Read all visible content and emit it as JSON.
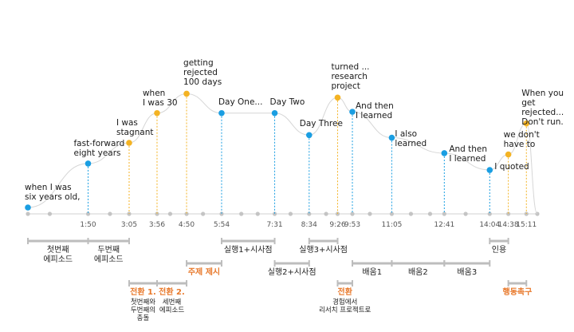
{
  "colors": {
    "blue": "#1a9ee2",
    "orange": "#f4b323",
    "orange_text": "#e8782a",
    "segment_gray": "#bdbdbd",
    "axis_gray": "#d9d9d9",
    "curve_gray": "#d6d6d6"
  },
  "points": [
    {
      "label": "when I was\nsix years old,",
      "t": 0,
      "level": 0.0,
      "color": "blue"
    },
    {
      "label": "fast-forward\neight years",
      "t": 110,
      "level": 0.34,
      "color": "blue"
    },
    {
      "label": "I was\nstagnant",
      "t": 185,
      "level": 0.5,
      "color": "orange"
    },
    {
      "label": "when\nI was 30",
      "t": 236,
      "level": 0.73,
      "color": "orange"
    },
    {
      "label": "getting\nrejected\n100 days",
      "t": 290,
      "level": 0.88,
      "color": "orange"
    },
    {
      "label": "Day One...",
      "t": 354,
      "level": 0.73,
      "color": "blue"
    },
    {
      "label": "Day Two",
      "t": 451,
      "level": 0.73,
      "color": "blue"
    },
    {
      "label": "Day Three",
      "t": 514,
      "level": 0.56,
      "color": "blue"
    },
    {
      "label": "turned ...\nresearch\nproject",
      "t": 566,
      "level": 0.85,
      "color": "orange"
    },
    {
      "label": "And then\nI learned",
      "t": 593,
      "level": 0.74,
      "color": "blue"
    },
    {
      "label": "I also\nlearned",
      "t": 665,
      "level": 0.54,
      "color": "blue"
    },
    {
      "label": "And then\nI learned",
      "t": 761,
      "level": 0.42,
      "color": "blue"
    },
    {
      "label": "I quoted",
      "t": 844,
      "level": 0.29,
      "color": "blue"
    },
    {
      "label": "we don't\nhave to",
      "t": 878,
      "level": 0.41,
      "color": "orange"
    },
    {
      "label": "When you\nget rejected...\nDon't run.",
      "t": 911,
      "level": 0.65,
      "color": "orange"
    }
  ],
  "ticks": [
    {
      "label": "1:50",
      "t": 110
    },
    {
      "label": "3:05",
      "t": 185
    },
    {
      "label": "3:56",
      "t": 236
    },
    {
      "label": "4:50",
      "t": 290
    },
    {
      "label": "5:54",
      "t": 354
    },
    {
      "label": "7:31",
      "t": 451
    },
    {
      "label": "8:34",
      "t": 514
    },
    {
      "label": "9:26",
      "t": 566
    },
    {
      "label": "9:53",
      "t": 593
    },
    {
      "label": "11:05",
      "t": 665
    },
    {
      "label": "12:41",
      "t": 761
    },
    {
      "label": "14:04",
      "t": 844
    },
    {
      "label": "14:38",
      "t": 878
    },
    {
      "label": "15:11",
      "t": 911
    }
  ],
  "segments": [
    {
      "label": "첫번째\n에피소드",
      "from": 0,
      "to": 110,
      "row": 1,
      "style": "dark"
    },
    {
      "label": "두번째\n에피소드",
      "from": 110,
      "to": 185,
      "row": 1,
      "style": "dark"
    },
    {
      "label": "실행1+시사점",
      "from": 354,
      "to": 451,
      "row": 1,
      "style": "dark"
    },
    {
      "label": "실행3+시사점",
      "from": 514,
      "to": 566,
      "row": 1,
      "style": "dark"
    },
    {
      "label": "인용",
      "from": 844,
      "to": 878,
      "row": 1,
      "style": "dark"
    },
    {
      "label": "주제 제시",
      "from": 290,
      "to": 354,
      "row": 2,
      "style": "orange"
    },
    {
      "label": "실행2+시사점",
      "from": 451,
      "to": 514,
      "row": 2,
      "style": "dark"
    },
    {
      "label": "배움1",
      "from": 593,
      "to": 665,
      "row": 2,
      "style": "dark"
    },
    {
      "label": "배움2",
      "from": 665,
      "to": 761,
      "row": 2,
      "style": "dark"
    },
    {
      "label": "배움3",
      "from": 761,
      "to": 844,
      "row": 2,
      "style": "dark"
    },
    {
      "label": "전환 1.",
      "sub": "첫번째와\n두번째의\n충돌",
      "from": 185,
      "to": 236,
      "row": 3,
      "style": "orange"
    },
    {
      "label": "전환 2.",
      "sub": "세번째\n에피소드",
      "from": 236,
      "to": 290,
      "row": 3,
      "style": "orange"
    },
    {
      "label": "전환",
      "sub": "경험에서\n리서치 프로젝트로",
      "from": 566,
      "to": 593,
      "row": 3,
      "style": "orange"
    },
    {
      "label": "행동촉구",
      "from": 878,
      "to": 911,
      "row": 3,
      "style": "orange"
    }
  ]
}
